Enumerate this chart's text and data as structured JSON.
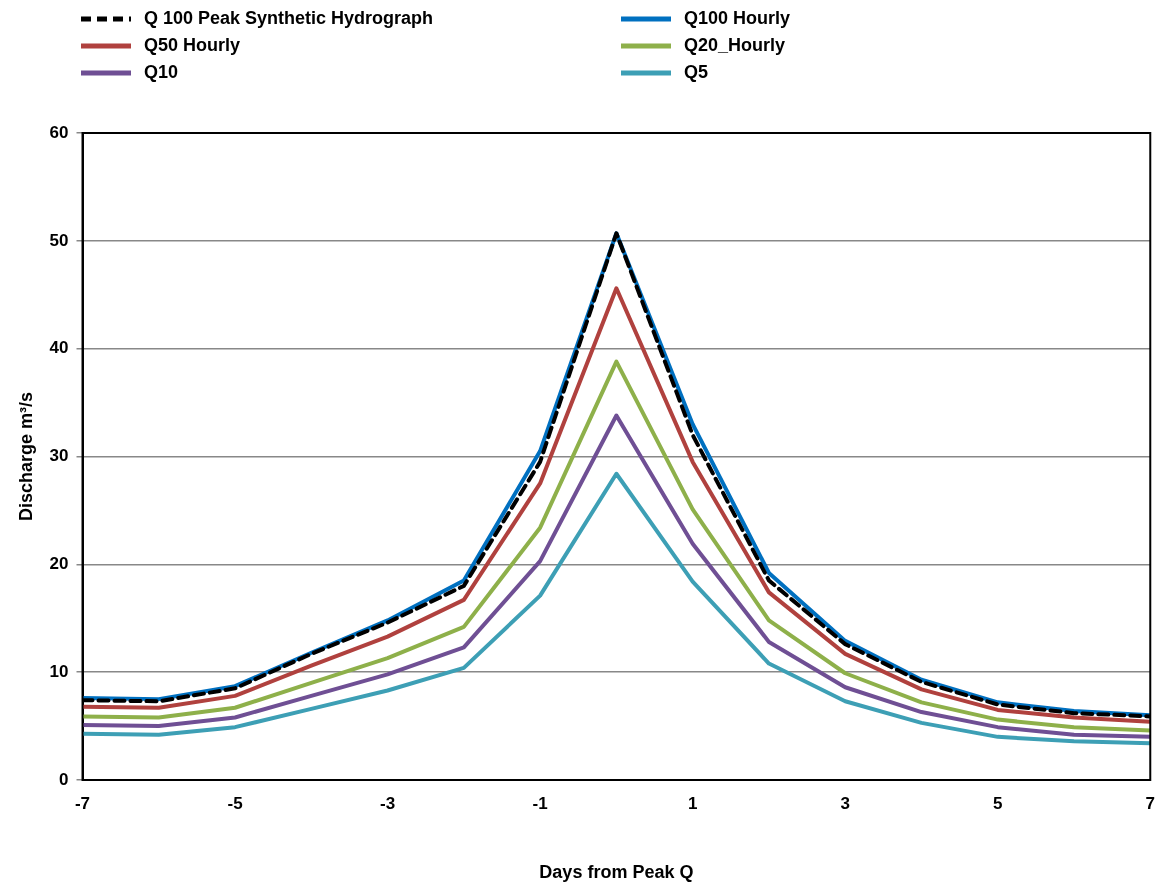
{
  "chart_data": {
    "type": "line",
    "xlabel": "Days from Peak Q",
    "ylabel": "Discharge m³/s",
    "x": [
      -7,
      -6,
      -5,
      -4,
      -3,
      -2,
      -1,
      0,
      1,
      2,
      3,
      4,
      5,
      6,
      7
    ],
    "xlim": [
      -7,
      7
    ],
    "xticks": [
      -7,
      -5,
      -3,
      -1,
      1,
      3,
      5,
      7
    ],
    "ylim": [
      0,
      60
    ],
    "yticks": [
      0,
      10,
      20,
      30,
      40,
      50,
      60
    ],
    "grid": "y",
    "legend": "top",
    "marker": "none",
    "series": [
      {
        "name": "Q 100 Peak Synthetic Hydrograph",
        "color": "#000000",
        "line_style": "dashed",
        "values": [
          7.4,
          7.3,
          8.5,
          11.7,
          14.6,
          18.0,
          29.5,
          50.7,
          32.0,
          18.5,
          12.6,
          9.1,
          7.0,
          6.2,
          5.9
        ]
      },
      {
        "name": "Q100 Hourly",
        "color": "#0070c0",
        "line_style": "solid",
        "values": [
          7.6,
          7.5,
          8.7,
          11.8,
          14.8,
          18.5,
          30.5,
          50.7,
          33.0,
          19.2,
          12.9,
          9.3,
          7.2,
          6.4,
          6.0
        ]
      },
      {
        "name": "Q50 Hourly",
        "color": "#b0413e",
        "line_style": "solid",
        "values": [
          6.8,
          6.7,
          7.8,
          10.6,
          13.3,
          16.7,
          27.5,
          45.6,
          29.5,
          17.4,
          11.7,
          8.4,
          6.5,
          5.8,
          5.4
        ]
      },
      {
        "name": "Q20_Hourly",
        "color": "#8eb04a",
        "line_style": "solid",
        "values": [
          5.9,
          5.8,
          6.7,
          9.0,
          11.3,
          14.2,
          23.4,
          38.8,
          25.1,
          14.8,
          9.9,
          7.2,
          5.6,
          4.9,
          4.6
        ]
      },
      {
        "name": "Q10",
        "color": "#6f4f94",
        "line_style": "solid",
        "values": [
          5.1,
          5.0,
          5.8,
          7.8,
          9.8,
          12.3,
          20.3,
          33.8,
          21.9,
          12.8,
          8.6,
          6.3,
          4.9,
          4.2,
          4.0
        ]
      },
      {
        "name": "Q5",
        "color": "#3d9fb5",
        "line_style": "solid",
        "values": [
          4.3,
          4.2,
          4.9,
          6.6,
          8.3,
          10.4,
          17.1,
          28.4,
          18.4,
          10.8,
          7.3,
          5.3,
          4.0,
          3.6,
          3.4
        ]
      }
    ]
  }
}
